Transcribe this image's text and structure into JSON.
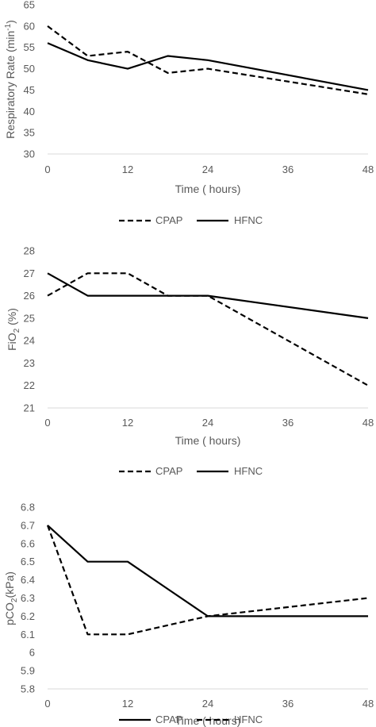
{
  "chart_data": [
    {
      "type": "line",
      "xlabel": "Time ( hours)",
      "ylabel": "Respiratory Rate (min",
      "ylabel_sup": "-1",
      "ylabel_end": ")",
      "x_ticks": [
        "0",
        "12",
        "24",
        "36",
        "48"
      ],
      "y_ticks": [
        "30",
        "35",
        "40",
        "45",
        "50",
        "55",
        "60",
        "65"
      ],
      "xlim": [
        0,
        48
      ],
      "ylim": [
        30,
        65
      ],
      "grid": false,
      "legend_position": "bottom",
      "series": [
        {
          "name": "CPAP",
          "style": "dashed",
          "x": [
            0,
            6,
            12,
            18,
            24,
            48
          ],
          "y": [
            60,
            53,
            54,
            49,
            50,
            44
          ]
        },
        {
          "name": "HFNC",
          "style": "solid",
          "x": [
            0,
            6,
            12,
            18,
            24,
            48
          ],
          "y": [
            56,
            52,
            50,
            53,
            52,
            45
          ]
        }
      ]
    },
    {
      "type": "line",
      "xlabel": "Time ( hours)",
      "ylabel": "FiO",
      "ylabel_sub": "2",
      "ylabel_end": " (%)",
      "x_ticks": [
        "0",
        "12",
        "24",
        "36",
        "48"
      ],
      "y_ticks": [
        "21",
        "22",
        "23",
        "24",
        "25",
        "26",
        "27",
        "28"
      ],
      "xlim": [
        0,
        48
      ],
      "ylim": [
        21,
        28
      ],
      "grid": false,
      "legend_position": "bottom",
      "series": [
        {
          "name": "CPAP",
          "style": "dashed",
          "x": [
            0,
            6,
            12,
            18,
            24,
            48
          ],
          "y": [
            26,
            27,
            27,
            26,
            26,
            22
          ]
        },
        {
          "name": "HFNC",
          "style": "solid",
          "x": [
            0,
            6,
            12,
            18,
            24,
            48
          ],
          "y": [
            27,
            26,
            26,
            26,
            26,
            25
          ]
        }
      ]
    },
    {
      "type": "line",
      "xlabel": "Time ( hours)",
      "ylabel": "pCO",
      "ylabel_sub": "2",
      "ylabel_end": "(kPa)",
      "x_ticks": [
        "0",
        "12",
        "24",
        "36",
        "48"
      ],
      "y_ticks": [
        "5.8",
        "5.9",
        "6",
        "6.1",
        "6.2",
        "6.3",
        "6.4",
        "6.5",
        "6.6",
        "6.7",
        "6.8"
      ],
      "xlim": [
        0,
        48
      ],
      "ylim": [
        5.8,
        6.8
      ],
      "grid": false,
      "legend_position": "bottom",
      "series": [
        {
          "name": "CPAP",
          "style": "solid",
          "x": [
            0,
            6,
            12,
            18,
            24,
            48
          ],
          "y": [
            6.7,
            6.5,
            6.5,
            6.35,
            6.2,
            6.2
          ]
        },
        {
          "name": "HFNC",
          "style": "dashed",
          "x": [
            0,
            6,
            12,
            18,
            24,
            48
          ],
          "y": [
            6.7,
            6.1,
            6.1,
            6.15,
            6.2,
            6.3
          ]
        }
      ]
    }
  ]
}
